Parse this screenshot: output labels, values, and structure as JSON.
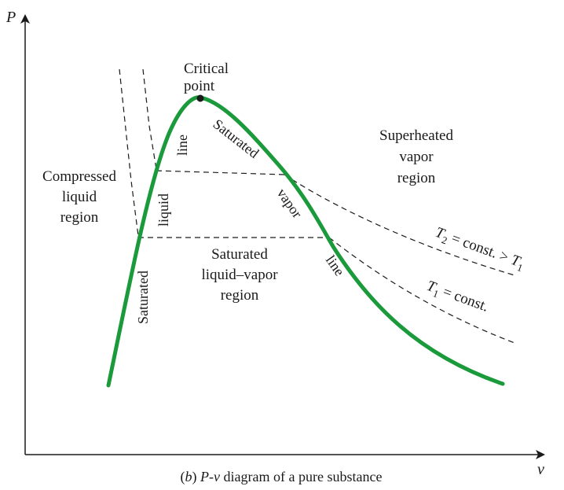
{
  "axes": {
    "y_label": "P",
    "x_label": "v"
  },
  "labels": {
    "critical_point": [
      "Critical",
      "point"
    ],
    "compressed_liquid": [
      "Compressed",
      "liquid",
      "region"
    ],
    "superheated_vapor": [
      "Superheated",
      "vapor",
      "region"
    ],
    "saturated_liquid_vapor": [
      "Saturated",
      "liquid–vapor",
      "region"
    ],
    "sat_liquid_line": {
      "word1": "Saturated",
      "word2": "liquid",
      "word3": "line"
    },
    "sat_vapor_line": {
      "word1": "Saturated",
      "word2": "vapor",
      "word3": "line"
    },
    "isotherm_t2": {
      "t": "T",
      "sub": "2",
      "text": " = const. > ",
      "t_end": "T",
      "sub_end": "1"
    },
    "isotherm_t1": {
      "t": "T",
      "sub": "1",
      "text": " = const."
    }
  },
  "caption": {
    "prefix": "(",
    "letter": "b",
    "suffix": ") ",
    "p": "P",
    "dash": "-",
    "v": "v",
    "rest": " diagram of a pure substance"
  },
  "colors": {
    "dome": "#1a9a3a",
    "ink": "#1a1a1a"
  }
}
